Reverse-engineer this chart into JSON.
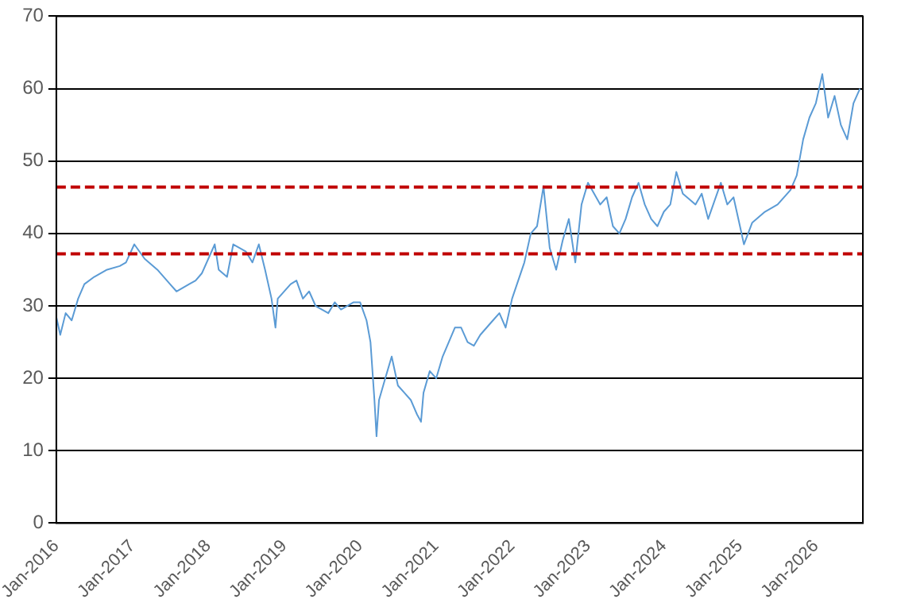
{
  "chart_data": {
    "type": "line",
    "grid": "y",
    "legend": false,
    "marker": "none",
    "xlim": [
      "2016-01-01",
      "2026-08-15"
    ],
    "xticks": [
      {
        "value": "2016-01-01",
        "label": "Jan-2016"
      },
      {
        "value": "2017-01-01",
        "label": "Jan-2017"
      },
      {
        "value": "2018-01-01",
        "label": "Jan-2018"
      },
      {
        "value": "2019-01-01",
        "label": "Jan-2019"
      },
      {
        "value": "2020-01-01",
        "label": "Jan-2020"
      },
      {
        "value": "2021-01-01",
        "label": "Jan-2021"
      },
      {
        "value": "2022-01-01",
        "label": "Jan-2022"
      },
      {
        "value": "2023-01-01",
        "label": "Jan-2023"
      },
      {
        "value": "2024-01-01",
        "label": "Jan-2024"
      },
      {
        "value": "2025-01-01",
        "label": "Jan-2025"
      },
      {
        "value": "2026-01-01",
        "label": "Jan-2026"
      }
    ],
    "ylim": [
      0,
      70
    ],
    "yticks": [
      0,
      10,
      20,
      30,
      40,
      50,
      60,
      70
    ],
    "ref_lines": [
      {
        "axis": "y",
        "value": 46.4,
        "color": "#c00000",
        "line_style": "dashed"
      },
      {
        "axis": "y",
        "value": 37.2,
        "color": "#c00000",
        "line_style": "dashed"
      }
    ],
    "series": [
      {
        "color": "#5b9bd5",
        "x": [
          "2016-01-01",
          "2016-01-20",
          "2016-02-15",
          "2016-03-15",
          "2016-04-15",
          "2016-05-15",
          "2016-07-01",
          "2016-09-01",
          "2016-11-01",
          "2016-12-01",
          "2017-01-10",
          "2017-03-01",
          "2017-05-01",
          "2017-07-01",
          "2017-08-01",
          "2017-10-01",
          "2017-11-01",
          "2017-12-01",
          "2018-02-01",
          "2018-02-20",
          "2018-04-01",
          "2018-05-01",
          "2018-07-01",
          "2018-08-01",
          "2018-09-01",
          "2018-10-01",
          "2018-11-01",
          "2018-11-20",
          "2018-12-01",
          "2019-02-01",
          "2019-03-01",
          "2019-04-01",
          "2019-05-01",
          "2019-06-01",
          "2019-08-01",
          "2019-09-01",
          "2019-10-01",
          "2019-12-01",
          "2020-01-01",
          "2020-02-01",
          "2020-02-20",
          "2020-03-10",
          "2020-03-20",
          "2020-04-01",
          "2020-05-01",
          "2020-06-01",
          "2020-07-01",
          "2020-08-01",
          "2020-09-01",
          "2020-10-01",
          "2020-10-20",
          "2020-11-01",
          "2020-12-01",
          "2021-01-01",
          "2021-02-01",
          "2021-04-01",
          "2021-05-01",
          "2021-06-01",
          "2021-07-01",
          "2021-08-01",
          "2021-10-01",
          "2021-11-01",
          "2021-12-01",
          "2022-01-01",
          "2022-03-01",
          "2022-04-01",
          "2022-05-01",
          "2022-06-01",
          "2022-07-01",
          "2022-08-01",
          "2022-09-01",
          "2022-10-01",
          "2022-11-01",
          "2022-12-01",
          "2023-01-01",
          "2023-03-01",
          "2023-04-01",
          "2023-05-01",
          "2023-06-01",
          "2023-07-01",
          "2023-08-01",
          "2023-09-01",
          "2023-10-01",
          "2023-11-01",
          "2023-12-01",
          "2024-01-01",
          "2024-02-01",
          "2024-03-01",
          "2024-04-01",
          "2024-06-01",
          "2024-07-01",
          "2024-08-01",
          "2024-10-01",
          "2024-11-01",
          "2024-12-01",
          "2025-01-01",
          "2025-01-20",
          "2025-03-01",
          "2025-05-01",
          "2025-07-01",
          "2025-09-01",
          "2025-10-01",
          "2025-11-01",
          "2025-12-01",
          "2026-01-01",
          "2026-02-01",
          "2026-03-01",
          "2026-04-01",
          "2026-05-01",
          "2026-06-01",
          "2026-07-01",
          "2026-08-01"
        ],
        "values": [
          28.5,
          26,
          29,
          28,
          31,
          33,
          34,
          35,
          35.5,
          36,
          38.5,
          36.5,
          35,
          33,
          32,
          33,
          33.5,
          34.5,
          38.5,
          35,
          34,
          38.5,
          37.5,
          36,
          38.5,
          35,
          31,
          27,
          31,
          33,
          33.5,
          31,
          32,
          30,
          29,
          30.5,
          29.5,
          30.5,
          30.5,
          28,
          25,
          17,
          12,
          17,
          20,
          23,
          19,
          18,
          17,
          15,
          14,
          18,
          21,
          20,
          23,
          27,
          27,
          25,
          24.5,
          26,
          28,
          29,
          27,
          31,
          36,
          40,
          41,
          46.5,
          38,
          35,
          39,
          42,
          36,
          44,
          47,
          44,
          45,
          41,
          40,
          42,
          45,
          47,
          44,
          42,
          41,
          43,
          44,
          48.5,
          45.5,
          44,
          45.5,
          42,
          47,
          44,
          45,
          41,
          38.5,
          41.5,
          43,
          44,
          46,
          48,
          53,
          56,
          58,
          62,
          56,
          59,
          55,
          53,
          58,
          60
        ]
      }
    ]
  }
}
